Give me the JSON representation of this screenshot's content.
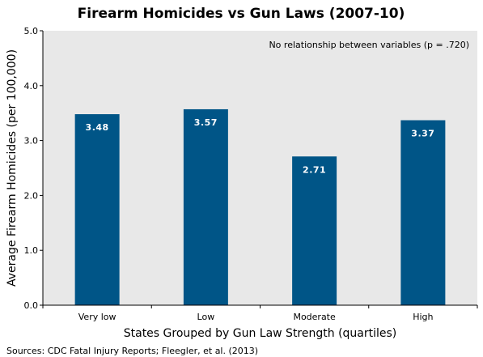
{
  "chart_data": {
    "type": "bar",
    "title": "Firearm Homicides vs Gun Laws (2007-10)",
    "xlabel": "States Grouped by Gun Law Strength (quartiles)",
    "ylabel": "Average Firearm Homicides (per 100,000)",
    "categories": [
      "Very low",
      "Low",
      "Moderate",
      "High"
    ],
    "values": [
      3.48,
      3.57,
      2.71,
      3.37
    ],
    "value_labels": [
      "3.48",
      "3.57",
      "2.71",
      "3.37"
    ],
    "ylim": [
      0,
      5
    ],
    "yticks": [
      0,
      1,
      2,
      3,
      4,
      5
    ],
    "ytick_labels": [
      "0.0",
      "1.0",
      "2.0",
      "3.0",
      "4.0",
      "5.0"
    ],
    "annotation": "No relationship between variables (p = .720)",
    "source": "Sources: CDC Fatal Injury Reports; Fleegler, et al. (2013)",
    "grid": false,
    "legend": "none"
  },
  "colors": {
    "bar": "#005587",
    "plot_background": "#e8e8e8",
    "axis": "#000000",
    "data_label": "#ffffff"
  }
}
